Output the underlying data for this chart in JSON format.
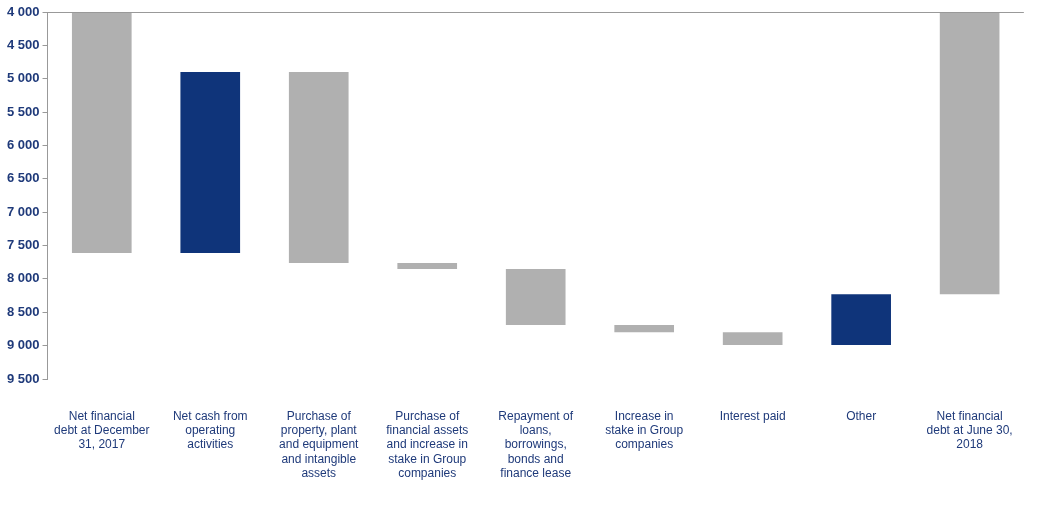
{
  "chart_data": {
    "type": "bar",
    "categories": [
      "Net financial debt at December 31, 2017",
      "Net cash from operating activities",
      "Purchase of property, plant and equipment and intangible assets",
      "Purchase of financial assets and increase in stake in Group companies",
      "Repayment of loans, borrowings, bonds and finance lease",
      "Increase in stake in Group companies",
      "Interest paid",
      "Other",
      "Net financial debt at June 30, 2018"
    ],
    "base": [
      4000,
      4900,
      4900,
      7760,
      7850,
      8690,
      8800,
      8230,
      4000
    ],
    "values": [
      3610,
      2710,
      2860,
      90,
      840,
      110,
      190,
      760,
      4230
    ],
    "colors": [
      "#b0b0b0",
      "#0f347a",
      "#b0b0b0",
      "#b0b0b0",
      "#b0b0b0",
      "#b0b0b0",
      "#b0b0b0",
      "#0f347a",
      "#b0b0b0"
    ],
    "ylim": [
      9500,
      4000
    ],
    "yticks": [
      {
        "value": 4000,
        "label": "4 000"
      },
      {
        "value": 4500,
        "label": "4 500"
      },
      {
        "value": 5000,
        "label": "5 000"
      },
      {
        "value": 5500,
        "label": "5 500"
      },
      {
        "value": 6000,
        "label": "6 000"
      },
      {
        "value": 6500,
        "label": "6 500"
      },
      {
        "value": 7000,
        "label": "7 000"
      },
      {
        "value": 7500,
        "label": "7 500"
      },
      {
        "value": 8000,
        "label": "8 000"
      },
      {
        "value": 8500,
        "label": "8 500"
      },
      {
        "value": 9000,
        "label": "9 000"
      },
      {
        "value": 9500,
        "label": "9 500"
      }
    ],
    "grid": false,
    "legend": false
  }
}
